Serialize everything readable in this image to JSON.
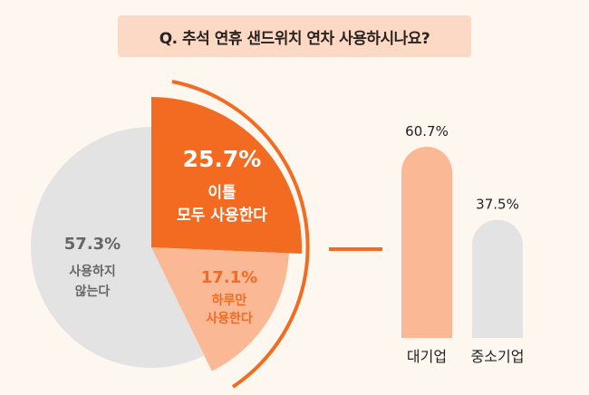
{
  "title": "Q. 추석 연휴 샌드위치 연차 사용하시나요?",
  "colors": {
    "background": "#fdf7f0",
    "title_box": "#fcd9c4",
    "accent": "#f26b21",
    "peach": "#fbb894",
    "gray": "#e4e3e3"
  },
  "chart_data": [
    {
      "type": "pie",
      "slices": [
        {
          "label_lines": [
            "이틀",
            "모두 사용한다"
          ],
          "value": 25.7,
          "value_label": "25.7%",
          "color": "#f26b21",
          "exploded": true
        },
        {
          "label_lines": [
            "하루만",
            "사용한다"
          ],
          "value": 17.1,
          "value_label": "17.1%",
          "color": "#fbb894"
        },
        {
          "label_lines": [
            "사용하지",
            "않는다"
          ],
          "value": 57.3,
          "value_label": "57.3%",
          "color": "#e4e3e3"
        }
      ]
    },
    {
      "type": "bar",
      "categories": [
        "대기업",
        "중소기업"
      ],
      "values": [
        60.7,
        37.5
      ],
      "value_labels": [
        "60.7%",
        "37.5%"
      ],
      "colors": [
        "#fbb894",
        "#e4e3e3"
      ],
      "ylim": [
        0,
        60.7
      ]
    }
  ]
}
